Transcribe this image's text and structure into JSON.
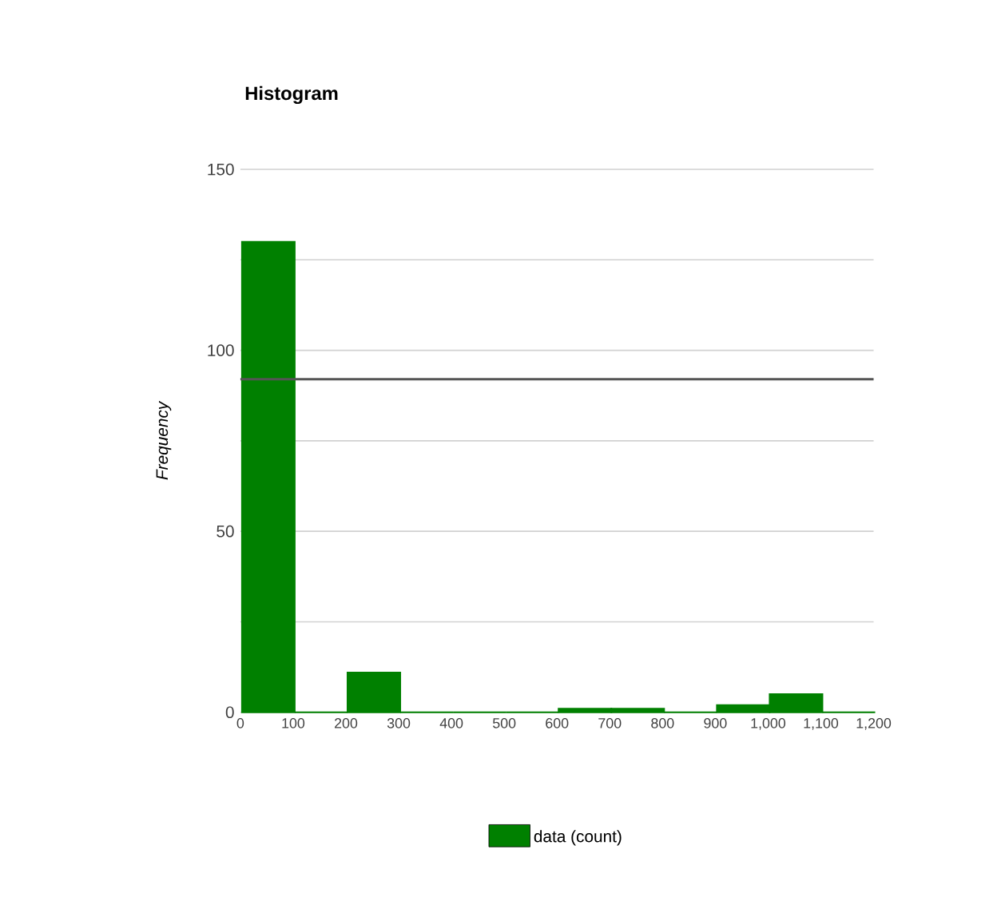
{
  "chart_data": {
    "type": "histogram",
    "title": "Histogram",
    "ylabel": "Frequency",
    "bins": [
      0,
      100,
      200,
      300,
      400,
      500,
      600,
      700,
      800,
      900,
      1000,
      1100,
      1200
    ],
    "series": [
      {
        "name": "data (count)",
        "color": "#008000",
        "values": [
          130,
          0,
          11,
          0,
          0,
          0,
          1,
          1,
          0,
          2,
          5,
          0
        ]
      }
    ],
    "xlim": [
      0,
      1200
    ],
    "xticks": [
      0,
      100,
      200,
      300,
      400,
      500,
      600,
      700,
      800,
      900,
      {
        "value": 1000,
        "label": "1,000"
      },
      {
        "value": 1100,
        "label": "1,100"
      },
      {
        "value": 1200,
        "label": "1,200"
      }
    ],
    "ylim": [
      0,
      150
    ],
    "yticks": [
      0,
      {
        "value": 25,
        "label": null
      },
      50,
      {
        "value": 75,
        "label": null
      },
      100,
      {
        "value": 125,
        "label": null
      },
      150
    ],
    "ref_lines": [
      {
        "axis": "y",
        "value": 92,
        "color": "#555555"
      }
    ],
    "grid": "y",
    "legend": "bottom"
  }
}
